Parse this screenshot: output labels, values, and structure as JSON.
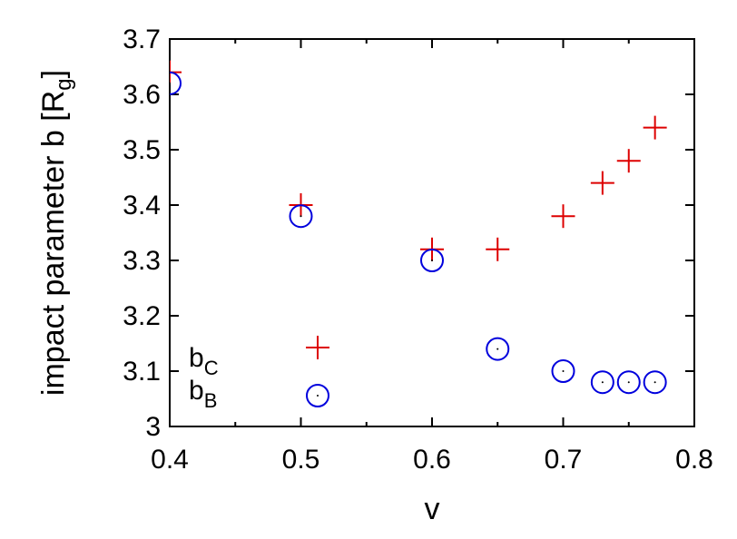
{
  "chart_data": {
    "type": "scatter",
    "title": "",
    "xlabel": "v",
    "ylabel": "impact parameter b [R",
    "ylabel_sub": "g",
    "ylabel_close": "]",
    "xlim": [
      0.4,
      0.8
    ],
    "ylim": [
      3.0,
      3.7
    ],
    "x_ticks": [
      0.4,
      0.5,
      0.6,
      0.7,
      0.8
    ],
    "x_tick_labels": [
      "0.4",
      "0.5",
      "0.6",
      "0.7",
      "0.8"
    ],
    "x_minor_ticks": [
      0.45,
      0.55,
      0.65,
      0.75
    ],
    "y_ticks": [
      3.0,
      3.1,
      3.2,
      3.3,
      3.4,
      3.5,
      3.6,
      3.7
    ],
    "y_tick_labels": [
      "3",
      "3.1",
      "3.2",
      "3.3",
      "3.4",
      "3.5",
      "3.6",
      "3.7"
    ],
    "grid": false,
    "legend_position": "bottom-left",
    "series": [
      {
        "name": "b",
        "name_sub": "C",
        "marker": "plus",
        "color": "#dd0000",
        "x": [
          0.4,
          0.5,
          0.6,
          0.65,
          0.7,
          0.73,
          0.75,
          0.77
        ],
        "y": [
          3.64,
          3.4,
          3.32,
          3.32,
          3.38,
          3.44,
          3.48,
          3.54
        ]
      },
      {
        "name": "b",
        "name_sub": "B",
        "marker": "circle",
        "color": "#0000dd",
        "x": [
          0.4,
          0.5,
          0.6,
          0.65,
          0.7,
          0.73,
          0.75,
          0.77
        ],
        "y": [
          3.62,
          3.38,
          3.3,
          3.14,
          3.1,
          3.08,
          3.08,
          3.08
        ]
      }
    ]
  }
}
